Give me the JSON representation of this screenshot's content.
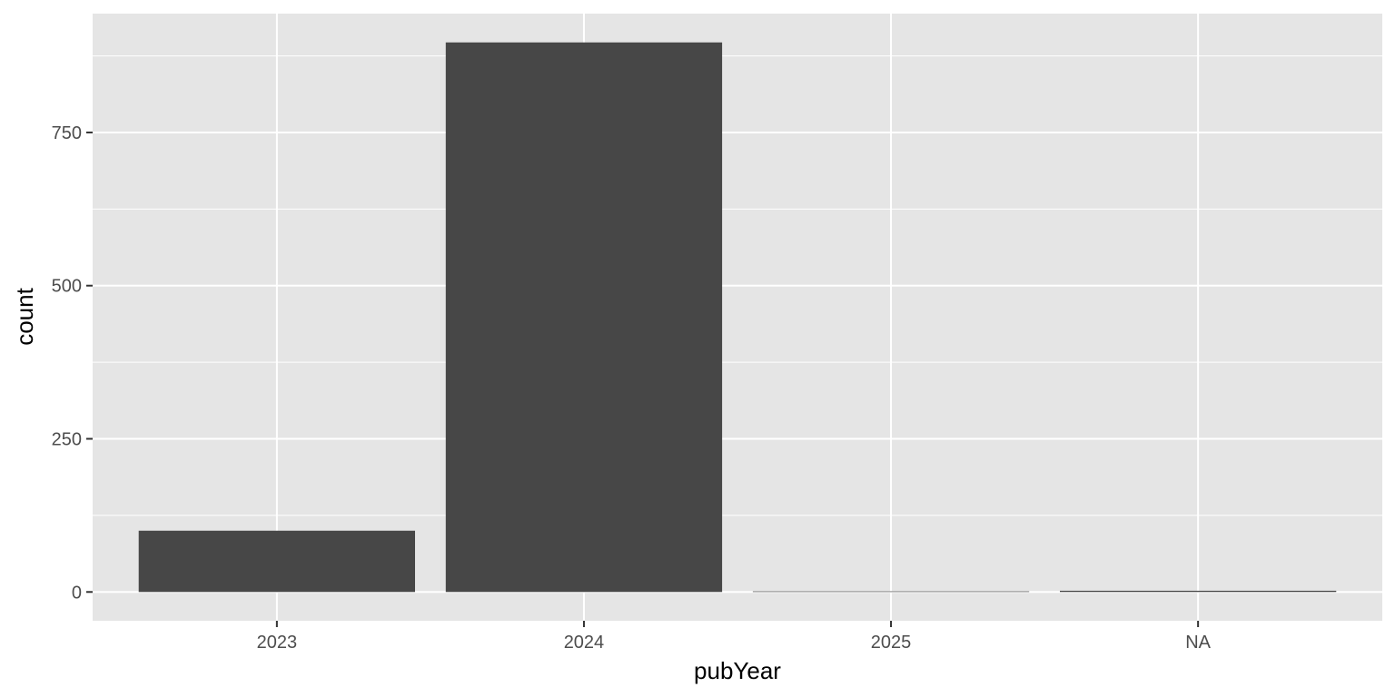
{
  "chart_data": {
    "type": "bar",
    "xlabel": "pubYear",
    "ylabel": "count",
    "categories": [
      "2023",
      "2024",
      "2025",
      "NA"
    ],
    "values": [
      100,
      897,
      1,
      2
    ],
    "ylim": [
      -47,
      944
    ],
    "yticks": [
      0,
      250,
      500,
      750
    ],
    "ytick_labels": [
      "0",
      "250",
      "500",
      "750"
    ],
    "grid": true,
    "colors": {
      "panel": "#e5e5e5",
      "grid": "#ffffff",
      "bar": "#474747",
      "tick_text": "#4d4d4d",
      "axis_title": "#000000"
    }
  }
}
